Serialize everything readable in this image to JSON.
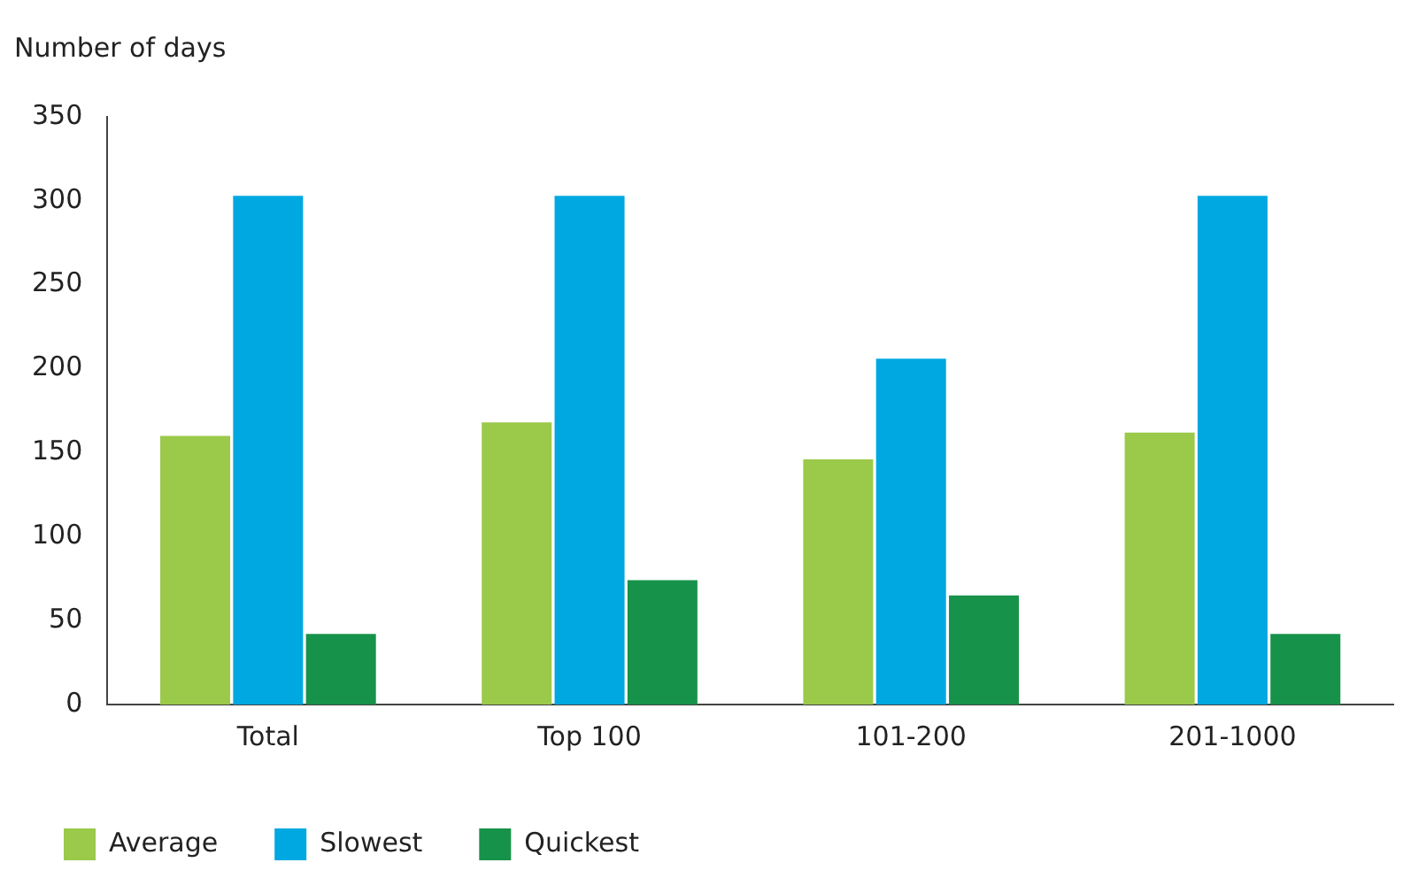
{
  "chart_data": {
    "type": "bar",
    "ylabel": "Number of days",
    "categories": [
      "Total",
      "Top 100",
      "101-200",
      "201-1000"
    ],
    "series": [
      {
        "name": "Average",
        "color": "#9bc94a",
        "values": [
          160,
          168,
          146,
          162
        ]
      },
      {
        "name": "Slowest",
        "color": "#00a8e1",
        "values": [
          303,
          303,
          206,
          303
        ]
      },
      {
        "name": "Quickest",
        "color": "#17924a",
        "values": [
          42,
          74,
          65,
          42
        ]
      }
    ],
    "ylim": [
      0,
      350
    ],
    "yticks": [
      0,
      50,
      100,
      150,
      200,
      250,
      300,
      350
    ],
    "grid": false,
    "legend": "bottom left"
  }
}
